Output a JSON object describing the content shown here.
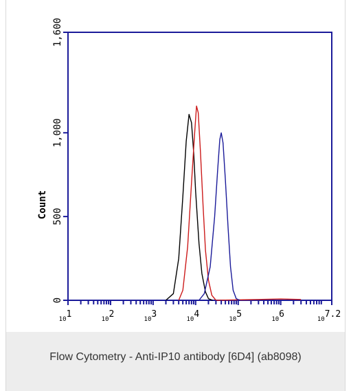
{
  "caption": "Flow Cytometry - Anti-IP10 antibody [6D4] (ab8098)",
  "chart_data": {
    "type": "line",
    "title": "",
    "xlabel": "",
    "ylabel": "Count",
    "x_scale": "log",
    "xlim": [
      10,
      15848932
    ],
    "ylim": [
      0,
      1600
    ],
    "y_ticks": [
      0,
      500,
      1000,
      1600
    ],
    "y_tick_labels": [
      "0",
      "500",
      "1,000",
      "1,600"
    ],
    "x_ticks": [
      10,
      100,
      1000,
      10000,
      100000,
      1000000,
      15848932
    ],
    "x_tick_bases": [
      "10",
      "10",
      "10",
      "10",
      "10",
      "10",
      "10"
    ],
    "x_tick_exponents": [
      "1",
      "2",
      "3",
      "4",
      "5",
      "6",
      "7.2"
    ],
    "series": [
      {
        "color": "#000000",
        "points": [
          [
            2000,
            0
          ],
          [
            3000,
            40
          ],
          [
            4000,
            250
          ],
          [
            5000,
            620
          ],
          [
            6000,
            950
          ],
          [
            7000,
            1110
          ],
          [
            8000,
            1060
          ],
          [
            9000,
            880
          ],
          [
            10000,
            650
          ],
          [
            12000,
            340
          ],
          [
            14000,
            160
          ],
          [
            17000,
            50
          ],
          [
            20000,
            10
          ],
          [
            25000,
            0
          ]
        ]
      },
      {
        "color": "#cc1a1a",
        "points": [
          [
            4000,
            0
          ],
          [
            5000,
            60
          ],
          [
            6500,
            320
          ],
          [
            8000,
            700
          ],
          [
            9500,
            1000
          ],
          [
            10500,
            1160
          ],
          [
            11500,
            1120
          ],
          [
            13000,
            880
          ],
          [
            15000,
            560
          ],
          [
            17000,
            300
          ],
          [
            20000,
            120
          ],
          [
            24000,
            30
          ],
          [
            30000,
            0
          ],
          [
            300000,
            5
          ],
          [
            1000000,
            8
          ],
          [
            3000000,
            5
          ]
        ]
      },
      {
        "color": "#1a1a99",
        "points": [
          [
            12000,
            0
          ],
          [
            16000,
            40
          ],
          [
            22000,
            200
          ],
          [
            28000,
            500
          ],
          [
            33000,
            780
          ],
          [
            37000,
            960
          ],
          [
            40000,
            1000
          ],
          [
            44000,
            940
          ],
          [
            50000,
            720
          ],
          [
            58000,
            430
          ],
          [
            66000,
            200
          ],
          [
            76000,
            60
          ],
          [
            90000,
            10
          ],
          [
            110000,
            0
          ]
        ]
      }
    ],
    "axis_color": "#1a1a99",
    "grid": false
  }
}
